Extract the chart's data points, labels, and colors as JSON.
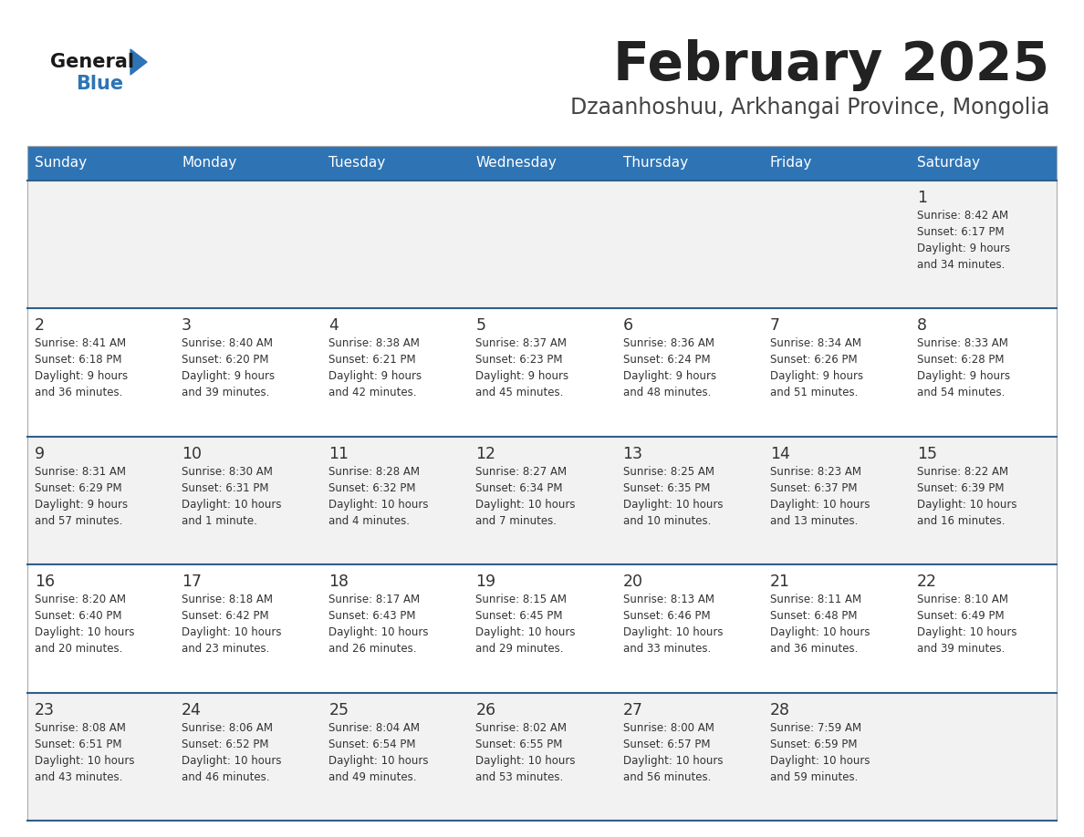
{
  "title": "February 2025",
  "subtitle": "Dzaanhoshuu, Arkhangai Province, Mongolia",
  "days_of_week": [
    "Sunday",
    "Monday",
    "Tuesday",
    "Wednesday",
    "Thursday",
    "Friday",
    "Saturday"
  ],
  "header_bg": "#2E74B5",
  "header_text_color": "#FFFFFF",
  "row_bg": [
    "#F2F2F2",
    "#FFFFFF",
    "#F2F2F2",
    "#FFFFFF",
    "#F2F2F2"
  ],
  "separator_color": "#2E5F8A",
  "text_color": "#333333",
  "title_color": "#222222",
  "subtitle_color": "#444444",
  "logo_general_color": "#1a1a1a",
  "logo_blue_color": "#2E74B5",
  "logo_triangle_color": "#2E74B5",
  "calendar_data": [
    [
      null,
      null,
      null,
      null,
      null,
      null,
      {
        "day": "1",
        "sunrise": "8:42 AM",
        "sunset": "6:17 PM",
        "daylight": "9 hours and 34 minutes."
      }
    ],
    [
      {
        "day": "2",
        "sunrise": "8:41 AM",
        "sunset": "6:18 PM",
        "daylight": "9 hours and 36 minutes."
      },
      {
        "day": "3",
        "sunrise": "8:40 AM",
        "sunset": "6:20 PM",
        "daylight": "9 hours and 39 minutes."
      },
      {
        "day": "4",
        "sunrise": "8:38 AM",
        "sunset": "6:21 PM",
        "daylight": "9 hours and 42 minutes."
      },
      {
        "day": "5",
        "sunrise": "8:37 AM",
        "sunset": "6:23 PM",
        "daylight": "9 hours and 45 minutes."
      },
      {
        "day": "6",
        "sunrise": "8:36 AM",
        "sunset": "6:24 PM",
        "daylight": "9 hours and 48 minutes."
      },
      {
        "day": "7",
        "sunrise": "8:34 AM",
        "sunset": "6:26 PM",
        "daylight": "9 hours and 51 minutes."
      },
      {
        "day": "8",
        "sunrise": "8:33 AM",
        "sunset": "6:28 PM",
        "daylight": "9 hours and 54 minutes."
      }
    ],
    [
      {
        "day": "9",
        "sunrise": "8:31 AM",
        "sunset": "6:29 PM",
        "daylight": "9 hours and 57 minutes."
      },
      {
        "day": "10",
        "sunrise": "8:30 AM",
        "sunset": "6:31 PM",
        "daylight": "10 hours and 1 minute."
      },
      {
        "day": "11",
        "sunrise": "8:28 AM",
        "sunset": "6:32 PM",
        "daylight": "10 hours and 4 minutes."
      },
      {
        "day": "12",
        "sunrise": "8:27 AM",
        "sunset": "6:34 PM",
        "daylight": "10 hours and 7 minutes."
      },
      {
        "day": "13",
        "sunrise": "8:25 AM",
        "sunset": "6:35 PM",
        "daylight": "10 hours and 10 minutes."
      },
      {
        "day": "14",
        "sunrise": "8:23 AM",
        "sunset": "6:37 PM",
        "daylight": "10 hours and 13 minutes."
      },
      {
        "day": "15",
        "sunrise": "8:22 AM",
        "sunset": "6:39 PM",
        "daylight": "10 hours and 16 minutes."
      }
    ],
    [
      {
        "day": "16",
        "sunrise": "8:20 AM",
        "sunset": "6:40 PM",
        "daylight": "10 hours and 20 minutes."
      },
      {
        "day": "17",
        "sunrise": "8:18 AM",
        "sunset": "6:42 PM",
        "daylight": "10 hours and 23 minutes."
      },
      {
        "day": "18",
        "sunrise": "8:17 AM",
        "sunset": "6:43 PM",
        "daylight": "10 hours and 26 minutes."
      },
      {
        "day": "19",
        "sunrise": "8:15 AM",
        "sunset": "6:45 PM",
        "daylight": "10 hours and 29 minutes."
      },
      {
        "day": "20",
        "sunrise": "8:13 AM",
        "sunset": "6:46 PM",
        "daylight": "10 hours and 33 minutes."
      },
      {
        "day": "21",
        "sunrise": "8:11 AM",
        "sunset": "6:48 PM",
        "daylight": "10 hours and 36 minutes."
      },
      {
        "day": "22",
        "sunrise": "8:10 AM",
        "sunset": "6:49 PM",
        "daylight": "10 hours and 39 minutes."
      }
    ],
    [
      {
        "day": "23",
        "sunrise": "8:08 AM",
        "sunset": "6:51 PM",
        "daylight": "10 hours and 43 minutes."
      },
      {
        "day": "24",
        "sunrise": "8:06 AM",
        "sunset": "6:52 PM",
        "daylight": "10 hours and 46 minutes."
      },
      {
        "day": "25",
        "sunrise": "8:04 AM",
        "sunset": "6:54 PM",
        "daylight": "10 hours and 49 minutes."
      },
      {
        "day": "26",
        "sunrise": "8:02 AM",
        "sunset": "6:55 PM",
        "daylight": "10 hours and 53 minutes."
      },
      {
        "day": "27",
        "sunrise": "8:00 AM",
        "sunset": "6:57 PM",
        "daylight": "10 hours and 56 minutes."
      },
      {
        "day": "28",
        "sunrise": "7:59 AM",
        "sunset": "6:59 PM",
        "daylight": "10 hours and 59 minutes."
      },
      null
    ]
  ]
}
